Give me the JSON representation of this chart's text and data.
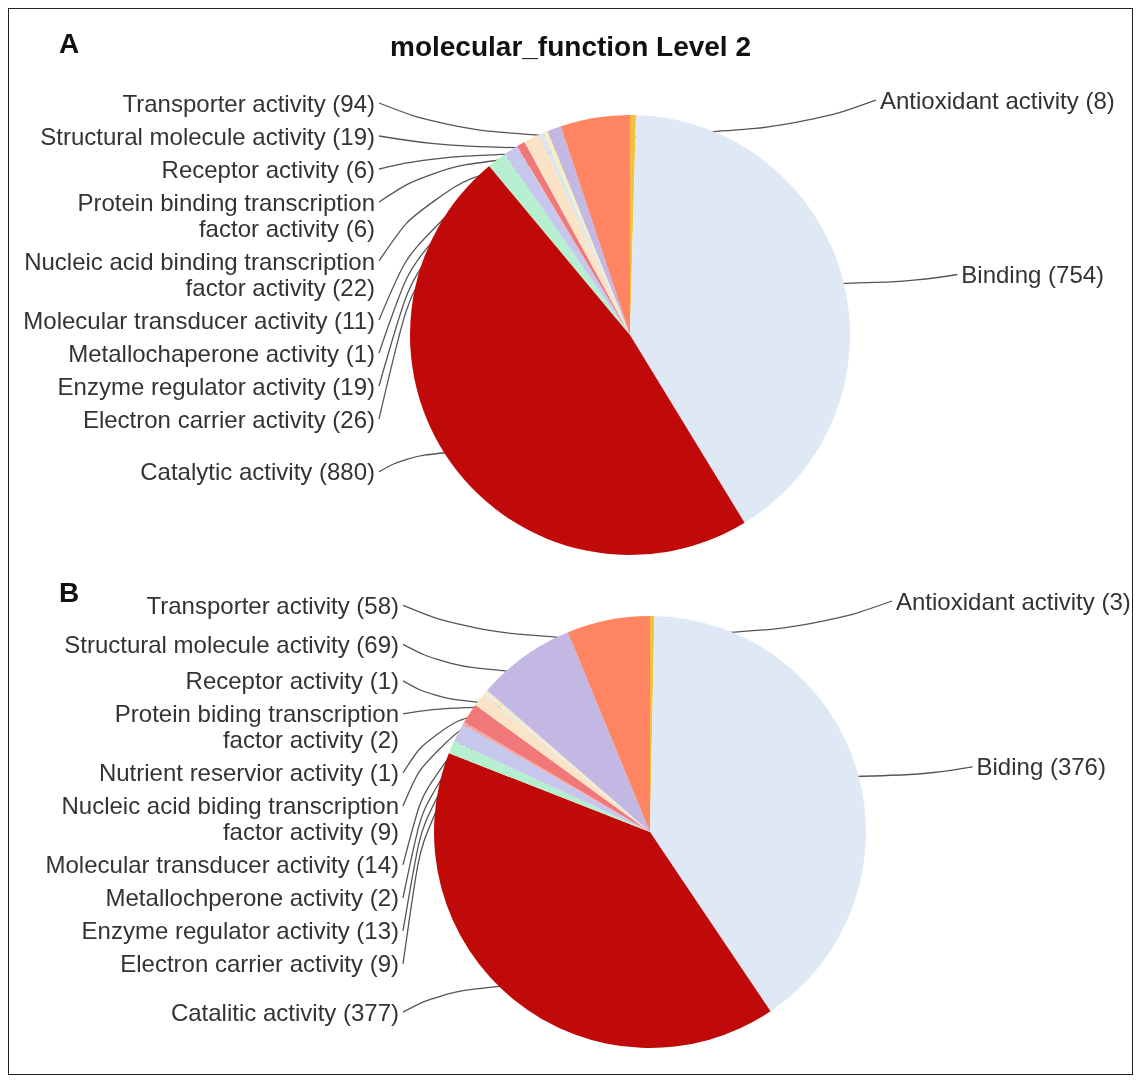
{
  "chart_data": [
    {
      "type": "pie",
      "title": "molecular_function Level 2",
      "annotations": [
        "A"
      ],
      "categories": [
        "Antioxidant activity",
        "Binding",
        "Catalytic activity",
        "Electron carrier activity",
        "Enzyme regulator activity",
        "Metallochaperone activity",
        "Molecular transducer activity",
        "Nucleic acid binding transcription\nfactor activity",
        "Protein binding transcription\nfactor activity",
        "Receptor activity",
        "Structural molecule activity",
        "Transporter activity"
      ],
      "values": [
        8,
        754,
        880,
        26,
        19,
        1,
        11,
        22,
        6,
        6,
        19,
        94
      ],
      "value_labels": [
        "(8)",
        "(754)",
        "(880)",
        "(26)",
        "(19)",
        "(1)",
        "(11)",
        "(22)",
        "(6)",
        "(6)",
        "(19)",
        "(94)"
      ],
      "colors": [
        "#f5c040",
        "#dfe8f5",
        "#c00a0a",
        "#b6f0d0",
        "#c7c6ec",
        "#f3a6a6",
        "#f07878",
        "#fbe3c8",
        "#d6e6f2",
        "#f8efc0",
        "#c3b8e3",
        "#ff8461"
      ]
    },
    {
      "type": "pie",
      "annotations": [
        "B"
      ],
      "categories": [
        "Antioxidant activity",
        "Biding",
        "Catalitic activity",
        "Electron carrier activity",
        "Enzyme regulator activity",
        "Metallochperone activity",
        "Molecular transducer activity",
        "Nucleic acid biding transcription\nfactor activity",
        "Nutrient reservior activity",
        "Protein biding transcription\nfactor activity",
        "Receptor activity",
        "Structural molecule activity",
        "Transporter activity"
      ],
      "values": [
        3,
        376,
        377,
        9,
        13,
        2,
        14,
        9,
        1,
        2,
        1,
        69,
        58
      ],
      "value_labels": [
        "(3)",
        "(376)",
        "(377)",
        "(9)",
        "(13)",
        "(2)",
        "(14)",
        "(9)",
        "(1)",
        "(2)",
        "(1)",
        "(69)",
        "(58)"
      ],
      "colors": [
        "#f5c040",
        "#dfe8f5",
        "#c00a0a",
        "#b6f0d0",
        "#c7c6ec",
        "#f3a6a6",
        "#f07878",
        "#fbe3c8",
        "#d6e6f2",
        "#f8efc0",
        "#f0d8e8",
        "#c3b8e3",
        "#ff8461"
      ]
    }
  ]
}
